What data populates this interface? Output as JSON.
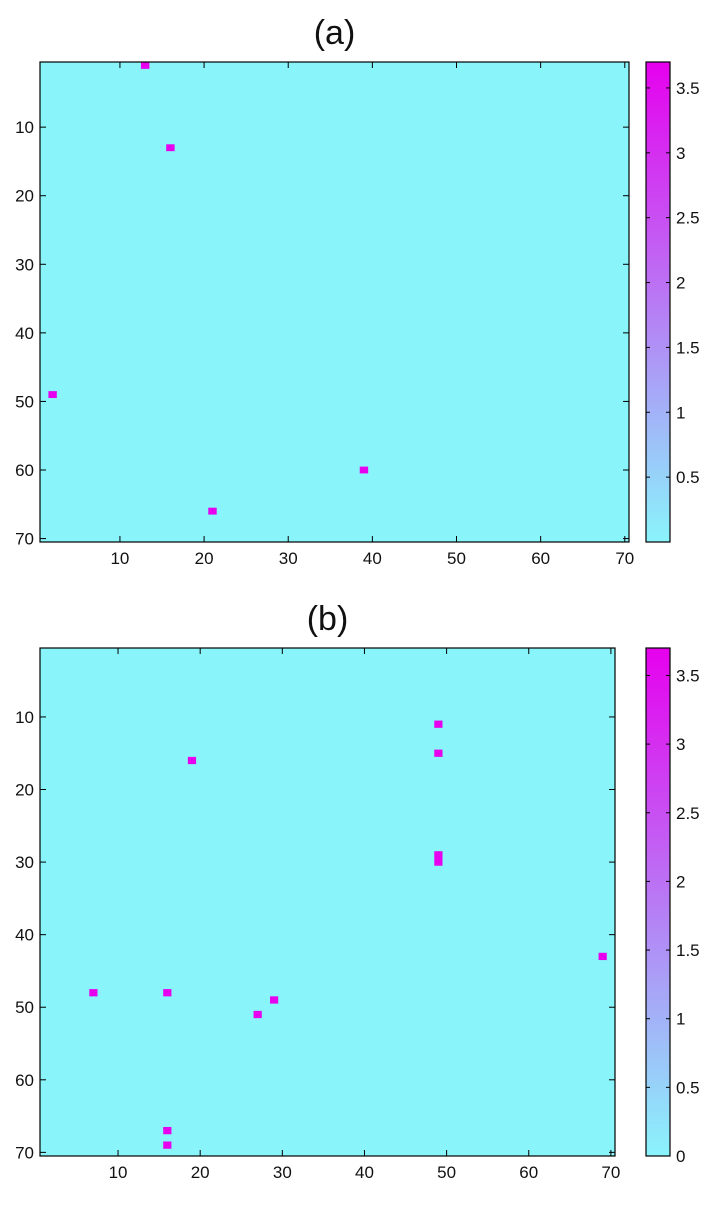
{
  "chart_data": [
    {
      "type": "heatmap",
      "title": "(a)",
      "xlim": [
        0.5,
        70.5
      ],
      "ylim": [
        70.5,
        0.5
      ],
      "y_axis_reversed": true,
      "grid": false,
      "background_value": 0,
      "xticks": [
        10,
        20,
        30,
        40,
        50,
        60,
        70
      ],
      "yticks": [
        10,
        20,
        30,
        40,
        50,
        60,
        70
      ],
      "points": [
        {
          "x": 13,
          "y": 1,
          "value": 3.7
        },
        {
          "x": 16,
          "y": 13,
          "value": 3.7
        },
        {
          "x": 2,
          "y": 49,
          "value": 3.7
        },
        {
          "x": 39,
          "y": 60,
          "value": 3.7
        },
        {
          "x": 21,
          "y": 66,
          "value": 3.7
        }
      ],
      "colorbar": {
        "min": 0,
        "max": 3.7,
        "ticks": [
          0.5,
          1,
          1.5,
          2,
          2.5,
          3,
          3.5
        ],
        "placement": "right",
        "low_color": "#8af4fb",
        "high_color": "#e600ee"
      }
    },
    {
      "type": "heatmap",
      "title": "(b)",
      "xlim": [
        0.5,
        70.5
      ],
      "ylim": [
        70.5,
        0.5
      ],
      "y_axis_reversed": true,
      "grid": false,
      "background_value": 0,
      "xticks": [
        10,
        20,
        30,
        40,
        50,
        60,
        70
      ],
      "yticks": [
        10,
        20,
        30,
        40,
        50,
        60,
        70
      ],
      "points": [
        {
          "x": 49,
          "y": 11,
          "value": 3.7
        },
        {
          "x": 49,
          "y": 15,
          "value": 3.7
        },
        {
          "x": 19,
          "y": 16,
          "value": 3.7
        },
        {
          "x": 49,
          "y": 29,
          "value": 3.7
        },
        {
          "x": 49,
          "y": 30,
          "value": 3.7
        },
        {
          "x": 69,
          "y": 43,
          "value": 3.7
        },
        {
          "x": 7,
          "y": 48,
          "value": 3.7
        },
        {
          "x": 16,
          "y": 48,
          "value": 3.7
        },
        {
          "x": 29,
          "y": 49,
          "value": 3.7
        },
        {
          "x": 27,
          "y": 51,
          "value": 3.7
        },
        {
          "x": 16,
          "y": 67,
          "value": 3.7
        },
        {
          "x": 16,
          "y": 69,
          "value": 3.7
        }
      ],
      "colorbar": {
        "min": 0,
        "max": 3.7,
        "ticks": [
          0,
          0.5,
          1,
          1.5,
          2,
          2.5,
          3,
          3.5
        ],
        "placement": "right",
        "low_color": "#8af4fb",
        "high_color": "#e600ee"
      }
    }
  ]
}
